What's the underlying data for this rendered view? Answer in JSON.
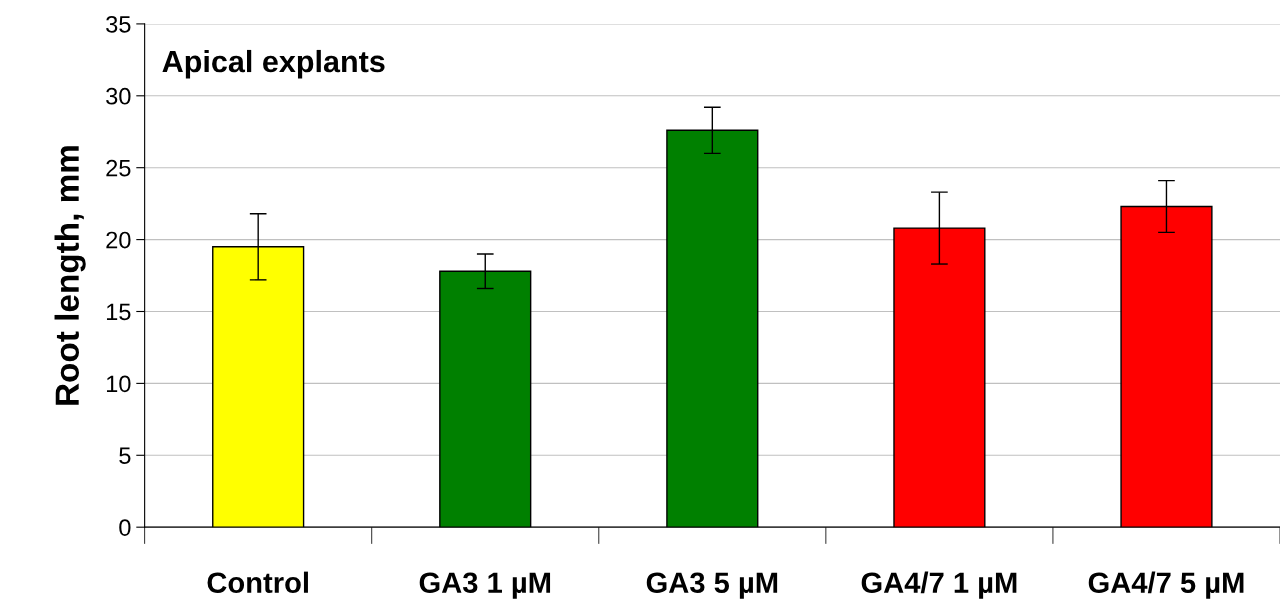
{
  "chart_data": {
    "type": "bar",
    "title": "Apical explants",
    "ylabel": "Root length, mm",
    "categories": [
      "Control",
      "GA3 1 µM",
      "GA3 5 µM",
      "GA4/7 1 µM",
      "GA4/7 5 µM"
    ],
    "values": [
      19.5,
      17.8,
      27.6,
      20.8,
      22.3
    ],
    "errors": [
      2.3,
      1.2,
      1.6,
      2.5,
      1.8
    ],
    "colors": [
      "#ffff00",
      "#008000",
      "#008000",
      "#ff0000",
      "#ff0000"
    ],
    "ylim": [
      0,
      35
    ],
    "yticks": [
      0,
      5,
      10,
      15,
      20,
      25,
      30,
      35
    ],
    "grid": "y"
  }
}
